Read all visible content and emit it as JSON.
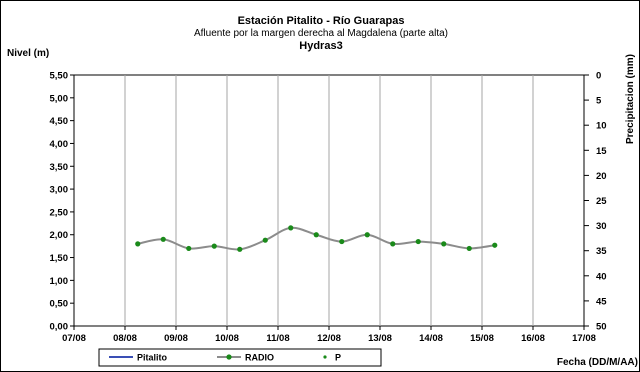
{
  "chart_data": {
    "type": "line",
    "title": "Estación Pitalito  - Río Guarapas",
    "subtitle": "Afluente por la margen derecha al Magdalena (parte alta)",
    "subtitle2": "Hydras3",
    "ylabel": "Nivel (m)",
    "y2label": "Precipitacion (mm)",
    "xlabel": "Fecha (DD/M/AA)",
    "ylim": [
      0,
      5.5
    ],
    "y2lim": [
      0,
      50
    ],
    "y2_inverted": true,
    "yticks": [
      "0,00",
      "0,50",
      "1,00",
      "1,50",
      "2,00",
      "2,50",
      "3,00",
      "3,50",
      "4,00",
      "4,50",
      "5,00",
      "5,50"
    ],
    "y2ticks": [
      "0",
      "5",
      "10",
      "15",
      "20",
      "25",
      "30",
      "35",
      "40",
      "45",
      "50"
    ],
    "xticks": [
      "07/08",
      "08/08",
      "09/08",
      "10/08",
      "11/08",
      "12/08",
      "13/08",
      "14/08",
      "15/08",
      "16/08",
      "17/08"
    ],
    "grid": true,
    "legend_position": "bottom-left",
    "series": [
      {
        "name": "Pitalito",
        "color": "#3a4fb5",
        "x": [],
        "y": []
      },
      {
        "name": "RADIO",
        "color": "#8c8c8c",
        "marker_color": "#1a8a1a",
        "x": [
          1.25,
          1.75,
          2.25,
          2.75,
          3.25,
          3.75,
          4.25,
          4.75,
          5.25,
          5.75,
          6.25,
          6.75,
          7.25,
          7.75,
          8.25
        ],
        "y": [
          1.8,
          1.9,
          1.7,
          1.75,
          1.68,
          1.88,
          2.15,
          2.0,
          1.85,
          2.0,
          1.8,
          1.85,
          1.8,
          1.7,
          1.77
        ]
      },
      {
        "name": "P",
        "color": "#1a8a1a",
        "x": [],
        "y": []
      }
    ]
  }
}
